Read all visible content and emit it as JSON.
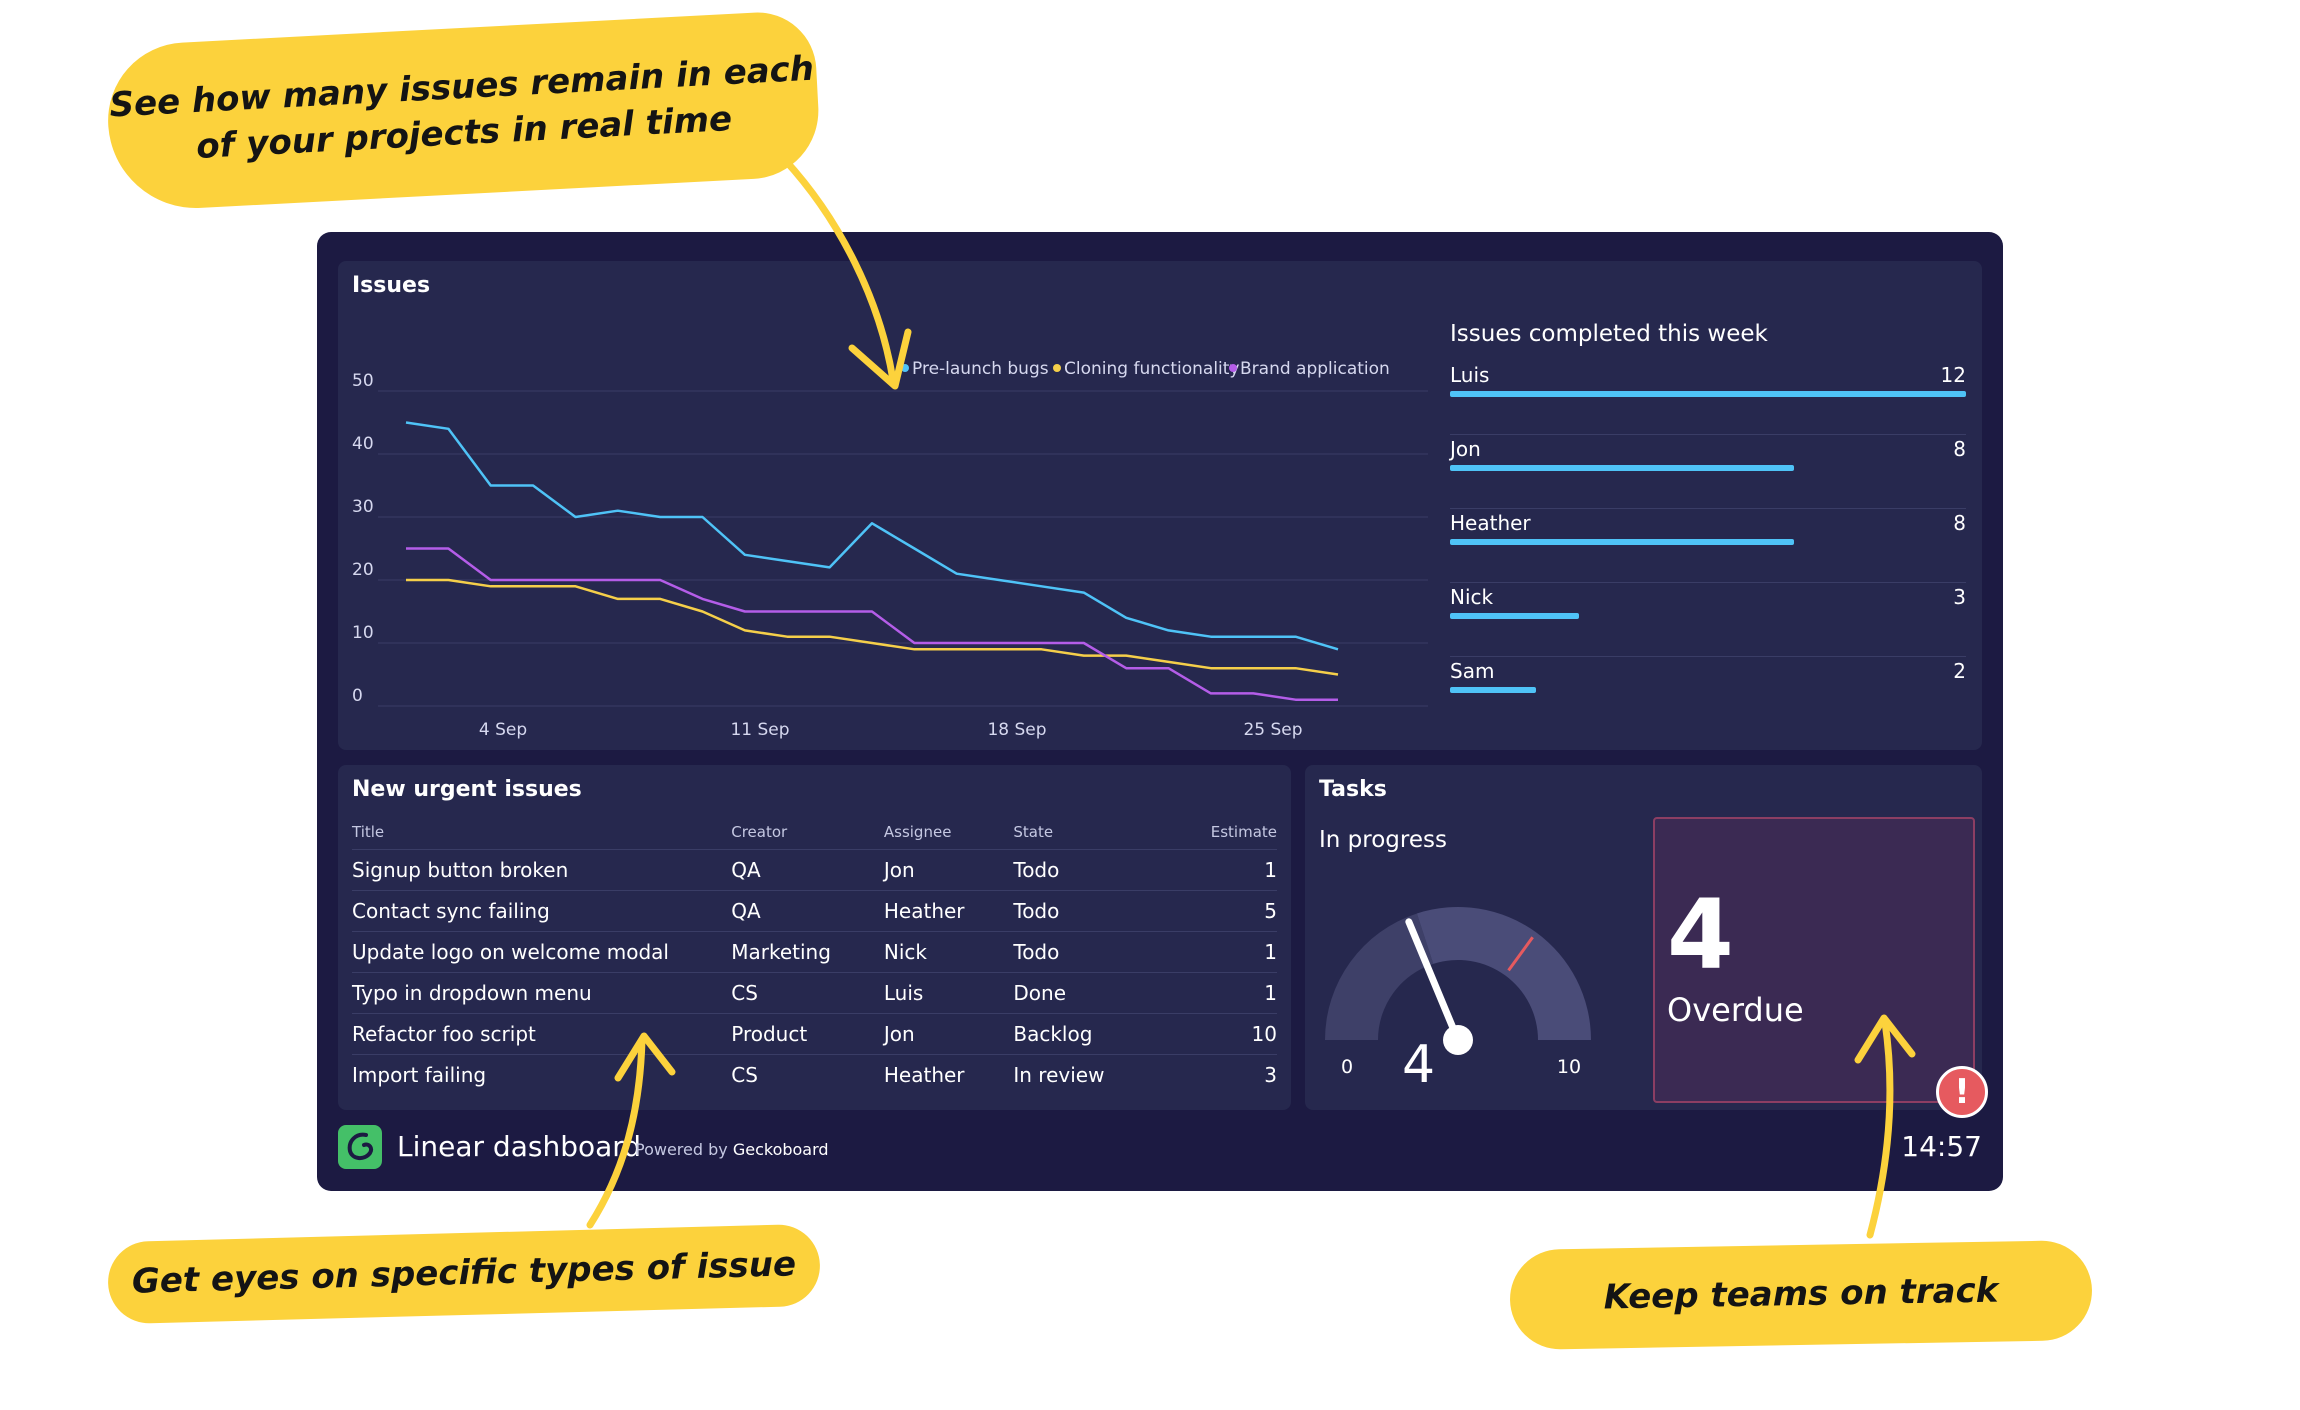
{
  "callouts": {
    "top": "See how many issues remain in each of your projects in real time",
    "bottom_left": "Get eyes on specific types of issue",
    "bottom_right": "Keep teams on track"
  },
  "issues_panel": {
    "title": "Issues"
  },
  "chart_data": {
    "type": "line",
    "title": "Issues",
    "x_ticks": [
      "4 Sep",
      "11 Sep",
      "18 Sep",
      "25 Sep"
    ],
    "ylim": [
      0,
      50
    ],
    "y_ticks": [
      0,
      10,
      20,
      30,
      40,
      50
    ],
    "grid": true,
    "legend_position": "top-right",
    "series": [
      {
        "name": "Pre-launch bugs",
        "color": "#4fc3f7",
        "values": [
          45,
          44,
          35,
          35,
          30,
          31,
          30,
          30,
          24,
          23,
          22,
          29,
          25,
          21,
          20,
          19,
          18,
          14,
          12,
          11,
          11,
          11,
          9
        ]
      },
      {
        "name": "Cloning functionality",
        "color": "#f5cf4a",
        "values": [
          20,
          20,
          19,
          19,
          19,
          17,
          17,
          15,
          12,
          11,
          11,
          10,
          9,
          9,
          9,
          9,
          8,
          8,
          7,
          6,
          6,
          6,
          5
        ]
      },
      {
        "name": "Brand application",
        "color": "#b45de8",
        "values": [
          25,
          25,
          20,
          20,
          20,
          20,
          20,
          17,
          15,
          15,
          15,
          15,
          10,
          10,
          10,
          10,
          10,
          6,
          6,
          2,
          2,
          1,
          1
        ]
      }
    ]
  },
  "leaderboard": {
    "title": "Issues completed this week",
    "max": 12,
    "rows": [
      {
        "name": "Luis",
        "value": 12
      },
      {
        "name": "Jon",
        "value": 8
      },
      {
        "name": "Heather",
        "value": 8
      },
      {
        "name": "Nick",
        "value": 3
      },
      {
        "name": "Sam",
        "value": 2
      }
    ]
  },
  "urgent": {
    "title": "New urgent issues",
    "headers": {
      "title": "Title",
      "creator": "Creator",
      "assignee": "Assignee",
      "state": "State",
      "estimate": "Estimate"
    },
    "rows": [
      {
        "title": "Signup button broken",
        "creator": "QA",
        "assignee": "Jon",
        "state": "Todo",
        "estimate": "1"
      },
      {
        "title": "Contact sync failing",
        "creator": "QA",
        "assignee": "Heather",
        "state": "Todo",
        "estimate": "5"
      },
      {
        "title": "Update logo on welcome modal",
        "creator": "Marketing",
        "assignee": "Nick",
        "state": "Todo",
        "estimate": "1"
      },
      {
        "title": "Typo in dropdown menu",
        "creator": "CS",
        "assignee": "Luis",
        "state": "Done",
        "estimate": "1"
      },
      {
        "title": "Refactor foo script",
        "creator": "Product",
        "assignee": "Jon",
        "state": "Backlog",
        "estimate": "10"
      },
      {
        "title": "Import failing",
        "creator": "CS",
        "assignee": "Heather",
        "state": "In review",
        "estimate": "3"
      }
    ]
  },
  "tasks": {
    "title": "Tasks",
    "gauge": {
      "label": "In progress",
      "value": 4,
      "min": 0,
      "max": 10,
      "threshold": 7,
      "min_label": "0",
      "max_label": "10",
      "value_label": "4"
    },
    "overdue": {
      "value": "4",
      "label": "Overdue"
    },
    "alert_icon": "exclamation-icon"
  },
  "footer": {
    "title": "Linear dashboard",
    "powered_prefix": "Powered by",
    "powered_brand": "Geckoboard",
    "clock": "14:57"
  }
}
